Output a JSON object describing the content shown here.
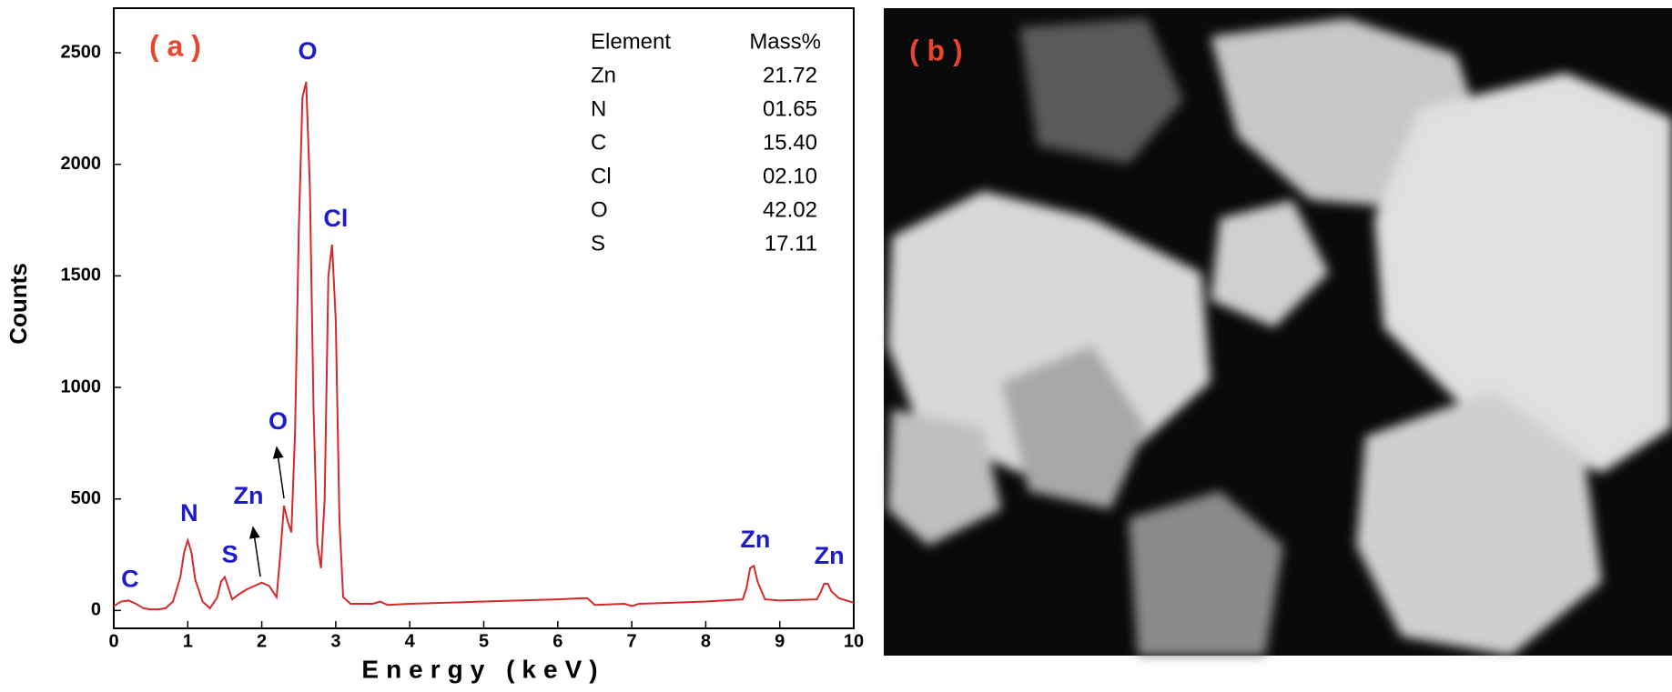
{
  "chart_data": {
    "type": "line",
    "panel_label": "( a )",
    "xlabel": "Energy (keV)",
    "ylabel": "Counts",
    "x": [
      0,
      0.1,
      0.2,
      0.3,
      0.4,
      0.5,
      0.6,
      0.7,
      0.8,
      0.9,
      0.95,
      1.0,
      1.05,
      1.1,
      1.2,
      1.3,
      1.4,
      1.45,
      1.5,
      1.55,
      1.6,
      1.7,
      1.8,
      1.9,
      2.0,
      2.1,
      2.2,
      2.25,
      2.3,
      2.35,
      2.4,
      2.45,
      2.5,
      2.55,
      2.6,
      2.65,
      2.7,
      2.75,
      2.8,
      2.85,
      2.9,
      2.95,
      3.0,
      3.05,
      3.1,
      3.2,
      3.5,
      3.6,
      3.7,
      4,
      5,
      6,
      6.3,
      6.4,
      6.5,
      6.9,
      7,
      7.1,
      8,
      8.5,
      8.55,
      8.6,
      8.65,
      8.7,
      8.8,
      9,
      9.5,
      9.55,
      9.6,
      9.65,
      9.7,
      9.8,
      10
    ],
    "values": [
      20,
      40,
      45,
      30,
      10,
      5,
      5,
      10,
      40,
      150,
      260,
      315,
      260,
      140,
      40,
      10,
      60,
      130,
      150,
      100,
      50,
      75,
      95,
      110,
      125,
      110,
      60,
      250,
      470,
      400,
      350,
      800,
      1700,
      2300,
      2370,
      1900,
      900,
      300,
      190,
      500,
      1500,
      1640,
      1300,
      400,
      60,
      30,
      30,
      40,
      25,
      30,
      40,
      50,
      55,
      55,
      25,
      30,
      20,
      30,
      40,
      50,
      100,
      190,
      200,
      130,
      50,
      45,
      50,
      80,
      120,
      120,
      85,
      55,
      35
    ],
    "color": "#d42a2a",
    "xlim": [
      0,
      10
    ],
    "xticks": [
      0,
      1,
      2,
      3,
      4,
      5,
      6,
      7,
      8,
      9,
      10
    ],
    "ylim": [
      -80,
      2700
    ],
    "yticks": [
      0,
      500,
      1000,
      1500,
      2000,
      2500
    ],
    "annotations": [
      {
        "text": "C",
        "x": 0.22,
        "y": 134
      },
      {
        "text": "N",
        "x": 1.02,
        "y": 430
      },
      {
        "text": "S",
        "x": 1.57,
        "y": 244
      },
      {
        "text": "Zn",
        "x": 1.82,
        "y": 507
      },
      {
        "text": "O",
        "x": 2.22,
        "y": 841
      },
      {
        "text": "O",
        "x": 2.62,
        "y": 2500
      },
      {
        "text": "Cl",
        "x": 3.0,
        "y": 1750
      },
      {
        "text": "Zn",
        "x": 8.67,
        "y": 311
      },
      {
        "text": "Zn",
        "x": 9.67,
        "y": 239
      }
    ],
    "table": {
      "columns": [
        "Element",
        "Mass%"
      ],
      "rows": [
        [
          "Zn",
          "21.72"
        ],
        [
          "N",
          "01.65"
        ],
        [
          "C",
          "15.40"
        ],
        [
          "Cl",
          "02.10"
        ],
        [
          "O",
          "42.02"
        ],
        [
          "S",
          "17.11"
        ]
      ]
    }
  },
  "image": {
    "panel_label": "( b )"
  }
}
